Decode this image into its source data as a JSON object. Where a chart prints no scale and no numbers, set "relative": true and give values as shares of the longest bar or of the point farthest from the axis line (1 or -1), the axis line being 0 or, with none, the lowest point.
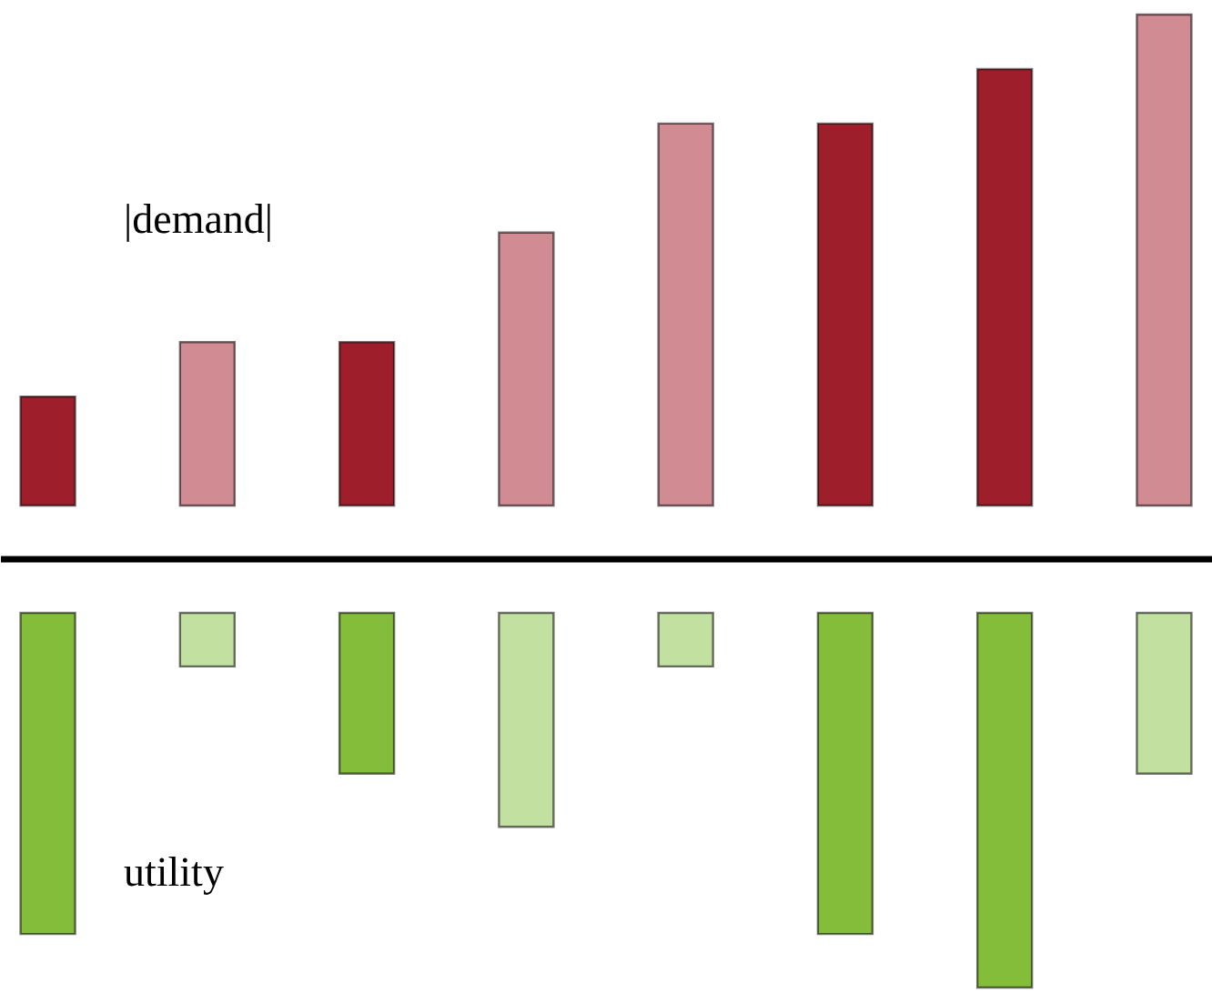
{
  "chart_data": [
    {
      "type": "bar",
      "relative": true,
      "categories": [
        null,
        null,
        null,
        null,
        null,
        null,
        null,
        null
      ],
      "values": [
        0.222,
        0.333,
        0.333,
        0.556,
        0.778,
        0.778,
        0.889,
        1
      ],
      "colors": [
        "#9e1f2b",
        "#d18b93",
        "#9e1f2b",
        "#d18b93",
        "#d18b93",
        "#9e1f2b",
        "#9e1f2b",
        "#d18b93"
      ],
      "annotations": [
        "|demand|"
      ]
    },
    {
      "type": "bar",
      "relative": true,
      "categories": [
        null,
        null,
        null,
        null,
        null,
        null,
        null,
        null
      ],
      "values": [
        -0.857,
        -0.143,
        -0.429,
        -0.571,
        -0.143,
        -0.857,
        -1,
        -0.429
      ],
      "colors": [
        "#84bd3a",
        "#c2e0a0",
        "#84bd3a",
        "#c2e0a0",
        "#c2e0a0",
        "#84bd3a",
        "#84bd3a",
        "#c2e0a0"
      ],
      "annotations": [
        "utility"
      ]
    }
  ]
}
